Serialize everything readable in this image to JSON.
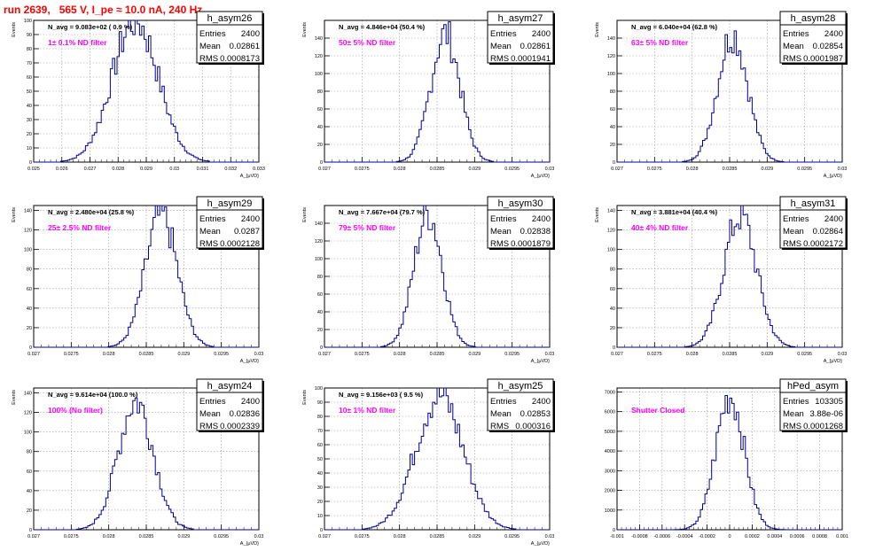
{
  "canvas_title": "run 2639,   565 V, I_pe ≈ 10.0 nA, 240 Hz",
  "colors": {
    "hist": "#000099",
    "annotation": "#ff00ff",
    "title": "#ff0000",
    "grid": "#9a9a9a"
  },
  "chart_data": [
    {
      "type": "histogram",
      "name": "h_asym26",
      "navg": "N_avg = 9.083e+02 ( 0.9 %)",
      "annotation": "1± 0.1% ND filter",
      "stats": {
        "entries": "2400",
        "mean": "0.02861",
        "rms": "0.0008173"
      },
      "xlim": [
        0.025,
        0.033
      ],
      "ylim": [
        0,
        100
      ],
      "xticks": [
        "0.025",
        "0.026",
        "0.027",
        "0.028",
        "0.029",
        "0.03",
        "0.031",
        "0.032",
        "0.033"
      ],
      "yticks": [
        "0",
        "10",
        "20",
        "30",
        "40",
        "50",
        "60",
        "70",
        "80",
        "90",
        "100"
      ],
      "xlabel": "A_{μVD}",
      "ylabel": "Events",
      "peak": 100,
      "grid": true
    },
    {
      "type": "histogram",
      "name": "h_asym27",
      "navg": "N_avg = 4.846e+04 (50.4 %)",
      "annotation": "50± 5% ND filter",
      "stats": {
        "entries": "2400",
        "mean": "0.02861",
        "rms": "0.0001941"
      },
      "xlim": [
        0.027,
        0.03
      ],
      "ylim": [
        0,
        160
      ],
      "xticks": [
        "0.027",
        "0.0275",
        "0.028",
        "0.0285",
        "0.029",
        "0.0295",
        "0.03"
      ],
      "yticks": [
        "0",
        "20",
        "40",
        "60",
        "80",
        "100",
        "120",
        "140"
      ],
      "xlabel": "A_{μVD}",
      "ylabel": "Events",
      "peak": 145,
      "grid": true
    },
    {
      "type": "histogram",
      "name": "h_asym28",
      "navg": "N_avg = 6.040e+04 (62.8 %)",
      "annotation": "63± 5% ND filter",
      "stats": {
        "entries": "2400",
        "mean": "0.02854",
        "rms": "0.0001987"
      },
      "xlim": [
        0.027,
        0.03
      ],
      "ylim": [
        0,
        160
      ],
      "xticks": [
        "0.027",
        "0.0275",
        "0.028",
        "0.0285",
        "0.029",
        "0.0295",
        "0.03"
      ],
      "yticks": [
        "0",
        "20",
        "40",
        "60",
        "80",
        "100",
        "120",
        "140"
      ],
      "xlabel": "A_{μVD}",
      "ylabel": "Events",
      "peak": 145,
      "grid": true
    },
    {
      "type": "histogram",
      "name": "h_asym29",
      "navg": "N_avg = 2.480e+04 (25.8 %)",
      "annotation": "25± 2.5% ND filter",
      "stats": {
        "entries": "2400",
        "mean": "0.0287",
        "rms": "0.0002128"
      },
      "xlim": [
        0.027,
        0.03
      ],
      "ylim": [
        0,
        145
      ],
      "xticks": [
        "0.027",
        "0.0275",
        "0.028",
        "0.0285",
        "0.029",
        "0.0295",
        "0.03"
      ],
      "yticks": [
        "0",
        "20",
        "40",
        "60",
        "80",
        "100",
        "120",
        "140"
      ],
      "xlabel": "A_{μVD}",
      "ylabel": "Events",
      "peak": 135,
      "grid": true
    },
    {
      "type": "histogram",
      "name": "h_asym30",
      "navg": "N_avg = 7.667e+04 (79.7 %)",
      "annotation": "79± 5% ND filter",
      "stats": {
        "entries": "2400",
        "mean": "0.02838",
        "rms": "0.0001879"
      },
      "xlim": [
        0.027,
        0.03
      ],
      "ylim": [
        0,
        160
      ],
      "xticks": [
        "0.027",
        "0.0275",
        "0.028",
        "0.0285",
        "0.029",
        "0.0295",
        "0.03"
      ],
      "yticks": [
        "0",
        "20",
        "40",
        "60",
        "80",
        "100",
        "120",
        "140"
      ],
      "xlabel": "A_{μVD}",
      "ylabel": "Events",
      "peak": 152,
      "grid": true
    },
    {
      "type": "histogram",
      "name": "h_asym31",
      "navg": "N_avg = 3.881e+04 (40.4 %)",
      "annotation": "40± 4% ND filter",
      "stats": {
        "entries": "2400",
        "mean": "0.02864",
        "rms": "0.0002172"
      },
      "xlim": [
        0.027,
        0.03
      ],
      "ylim": [
        0,
        145
      ],
      "xticks": [
        "0.027",
        "0.0275",
        "0.028",
        "0.0285",
        "0.029",
        "0.0295",
        "0.03"
      ],
      "yticks": [
        "0",
        "20",
        "40",
        "60",
        "80",
        "100",
        "120",
        "140"
      ],
      "xlabel": "A_{μVD}",
      "ylabel": "Events",
      "peak": 135,
      "grid": true
    },
    {
      "type": "histogram",
      "name": "h_asym24",
      "navg": "N_avg = 9.614e+04 (100.0 %)",
      "annotation": "100% (No filter)",
      "stats": {
        "entries": "2400",
        "mean": "0.02836",
        "rms": "0.0002339"
      },
      "xlim": [
        0.027,
        0.03
      ],
      "ylim": [
        0,
        145
      ],
      "xticks": [
        "0.027",
        "0.0275",
        "0.028",
        "0.0285",
        "0.029",
        "0.0295",
        "0.03"
      ],
      "yticks": [
        "0",
        "20",
        "40",
        "60",
        "80",
        "100",
        "120",
        "140"
      ],
      "xlabel": "A_{μVD}",
      "ylabel": "Events",
      "peak": 132,
      "grid": true
    },
    {
      "type": "histogram",
      "name": "h_asym25",
      "navg": "N_avg = 9.156e+03 ( 9.5 %)",
      "annotation": "10± 1% ND filter",
      "stats": {
        "entries": "2400",
        "mean": "0.02853",
        "rms": "0.000316"
      },
      "xlim": [
        0.027,
        0.03
      ],
      "ylim": [
        0,
        100
      ],
      "xticks": [
        "0.027",
        "0.0275",
        "0.028",
        "0.0285",
        "0.029",
        "0.0295",
        "0.03"
      ],
      "yticks": [
        "0",
        "10",
        "20",
        "30",
        "40",
        "50",
        "60",
        "70",
        "80",
        "90",
        "100"
      ],
      "xlabel": "A_{μVD}",
      "ylabel": "Events",
      "peak": 95,
      "grid": true
    },
    {
      "type": "histogram",
      "name": "hPed_asym",
      "navg": "",
      "annotation": "Shutter Closed",
      "stats": {
        "entries": "103305",
        "mean": "3.88e-06",
        "rms": "0.0001268"
      },
      "xlim": [
        -0.001,
        0.001
      ],
      "ylim": [
        0,
        7200
      ],
      "xticks": [
        "-0.001",
        "-0.0008",
        "-0.0006",
        "-0.0004",
        "-0.0002",
        "0",
        "0.0002",
        "0.0004",
        "0.0006",
        "0.0008",
        "0.001"
      ],
      "yticks": [
        "0",
        "1000",
        "2000",
        "3000",
        "4000",
        "5000",
        "6000",
        "7000"
      ],
      "xlabel": "",
      "ylabel": "",
      "peak": 6800,
      "grid": true
    }
  ],
  "stat_labels": {
    "entries": "Entries",
    "mean": "Mean",
    "rms": "RMS"
  }
}
